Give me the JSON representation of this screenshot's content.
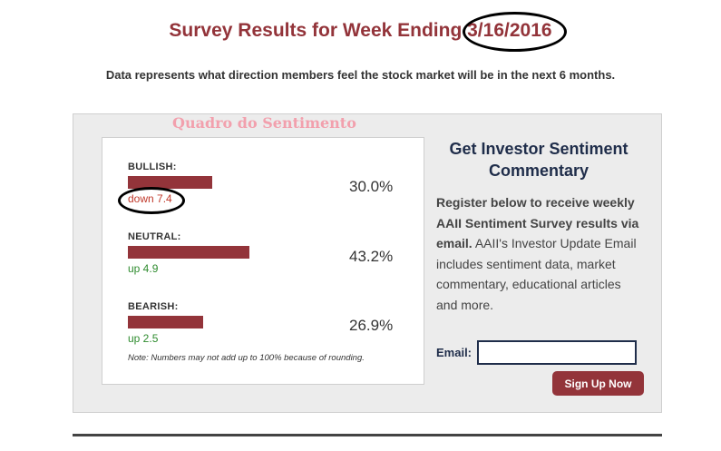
{
  "header": {
    "title_prefix": "Survey Results for Week Ending ",
    "title_date": "3/16/2016",
    "subtitle": "Data represents what direction members feel the stock market will be in the next 6 months."
  },
  "overlay_label": "Quadro do Sentimento",
  "sentiment": {
    "rows": [
      {
        "label": "BULLISH:",
        "value": 30.0,
        "percent": "30.0%",
        "change": "down 7.4",
        "direction": "down"
      },
      {
        "label": "NEUTRAL:",
        "value": 43.2,
        "percent": "43.2%",
        "change": "up 4.9",
        "direction": "up"
      },
      {
        "label": "BEARISH:",
        "value": 26.9,
        "percent": "26.9%",
        "change": "up 2.5",
        "direction": "up"
      }
    ],
    "note": "Note: Numbers may not add up to 100% because of rounding."
  },
  "signup": {
    "title": "Get Investor Sentiment Commentary",
    "text_bold": "Register below to receive weekly AAII Sentiment Survey results via email.",
    "text_rest": " AAII's Investor Update Email includes sentiment data, market commentary, educational articles and more.",
    "email_label": "Email:",
    "email_value": "",
    "button_label": "Sign Up Now"
  },
  "colors": {
    "accent": "#93343a",
    "down": "#c0392b",
    "up": "#2e8b2e",
    "navy": "#1f2d4a"
  }
}
